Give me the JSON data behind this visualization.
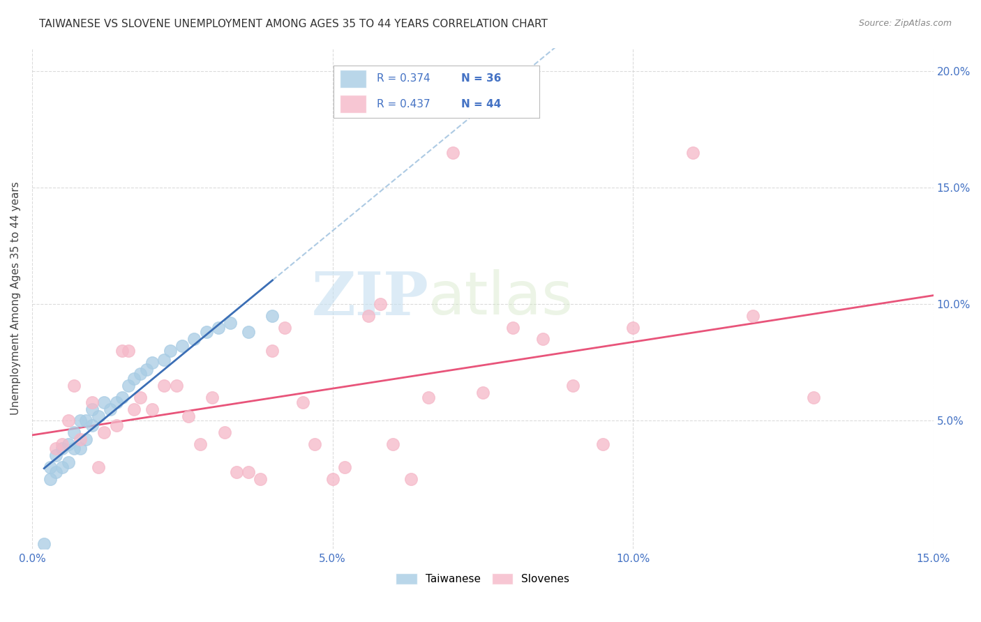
{
  "title": "TAIWANESE VS SLOVENE UNEMPLOYMENT AMONG AGES 35 TO 44 YEARS CORRELATION CHART",
  "source": "Source: ZipAtlas.com",
  "ylabel": "Unemployment Among Ages 35 to 44 years",
  "watermark_zip": "ZIP",
  "watermark_atlas": "atlas",
  "xlim": [
    0.0,
    0.15
  ],
  "ylim": [
    -0.005,
    0.21
  ],
  "xticks": [
    0.0,
    0.05,
    0.1,
    0.15
  ],
  "yticks": [
    0.05,
    0.1,
    0.15,
    0.2
  ],
  "xticklabels": [
    "0.0%",
    "5.0%",
    "10.0%",
    "15.0%"
  ],
  "yticklabels": [
    "5.0%",
    "10.0%",
    "15.0%",
    "20.0%"
  ],
  "taiwanese_R": 0.374,
  "taiwanese_N": 36,
  "slovene_R": 0.437,
  "slovene_N": 44,
  "taiwanese_color": "#a8cce4",
  "slovene_color": "#f5b8c8",
  "taiwanese_line_color": "#3b6eb5",
  "slovene_line_color": "#e8547a",
  "taiwanese_dashed_color": "#8ab4d8",
  "taiwanese_x": [
    0.002,
    0.003,
    0.003,
    0.004,
    0.004,
    0.005,
    0.005,
    0.006,
    0.006,
    0.007,
    0.007,
    0.008,
    0.008,
    0.009,
    0.009,
    0.01,
    0.01,
    0.011,
    0.012,
    0.013,
    0.014,
    0.015,
    0.016,
    0.017,
    0.018,
    0.019,
    0.02,
    0.022,
    0.023,
    0.025,
    0.027,
    0.029,
    0.031,
    0.033,
    0.036,
    0.04
  ],
  "taiwanese_y": [
    -0.003,
    0.025,
    0.03,
    0.028,
    0.035,
    0.03,
    0.038,
    0.032,
    0.04,
    0.038,
    0.045,
    0.038,
    0.05,
    0.042,
    0.05,
    0.048,
    0.055,
    0.052,
    0.058,
    0.055,
    0.058,
    0.06,
    0.065,
    0.068,
    0.07,
    0.072,
    0.075,
    0.076,
    0.08,
    0.082,
    0.085,
    0.088,
    0.09,
    0.092,
    0.088,
    0.095
  ],
  "slovene_x": [
    0.004,
    0.005,
    0.006,
    0.007,
    0.008,
    0.01,
    0.011,
    0.012,
    0.014,
    0.015,
    0.016,
    0.017,
    0.018,
    0.02,
    0.022,
    0.024,
    0.026,
    0.028,
    0.03,
    0.032,
    0.034,
    0.036,
    0.038,
    0.04,
    0.042,
    0.045,
    0.047,
    0.05,
    0.052,
    0.056,
    0.058,
    0.06,
    0.063,
    0.066,
    0.07,
    0.075,
    0.08,
    0.085,
    0.09,
    0.095,
    0.1,
    0.11,
    0.12,
    0.13
  ],
  "slovene_y": [
    0.038,
    0.04,
    0.05,
    0.065,
    0.042,
    0.058,
    0.03,
    0.045,
    0.048,
    0.08,
    0.08,
    0.055,
    0.06,
    0.055,
    0.065,
    0.065,
    0.052,
    0.04,
    0.06,
    0.045,
    0.028,
    0.028,
    0.025,
    0.08,
    0.09,
    0.058,
    0.04,
    0.025,
    0.03,
    0.095,
    0.1,
    0.04,
    0.025,
    0.06,
    0.165,
    0.062,
    0.09,
    0.085,
    0.065,
    0.04,
    0.09,
    0.165,
    0.095,
    0.06
  ],
  "background_color": "#ffffff",
  "grid_color": "#cccccc",
  "tick_color": "#4472c4",
  "title_color": "#333333",
  "source_color": "#888888"
}
